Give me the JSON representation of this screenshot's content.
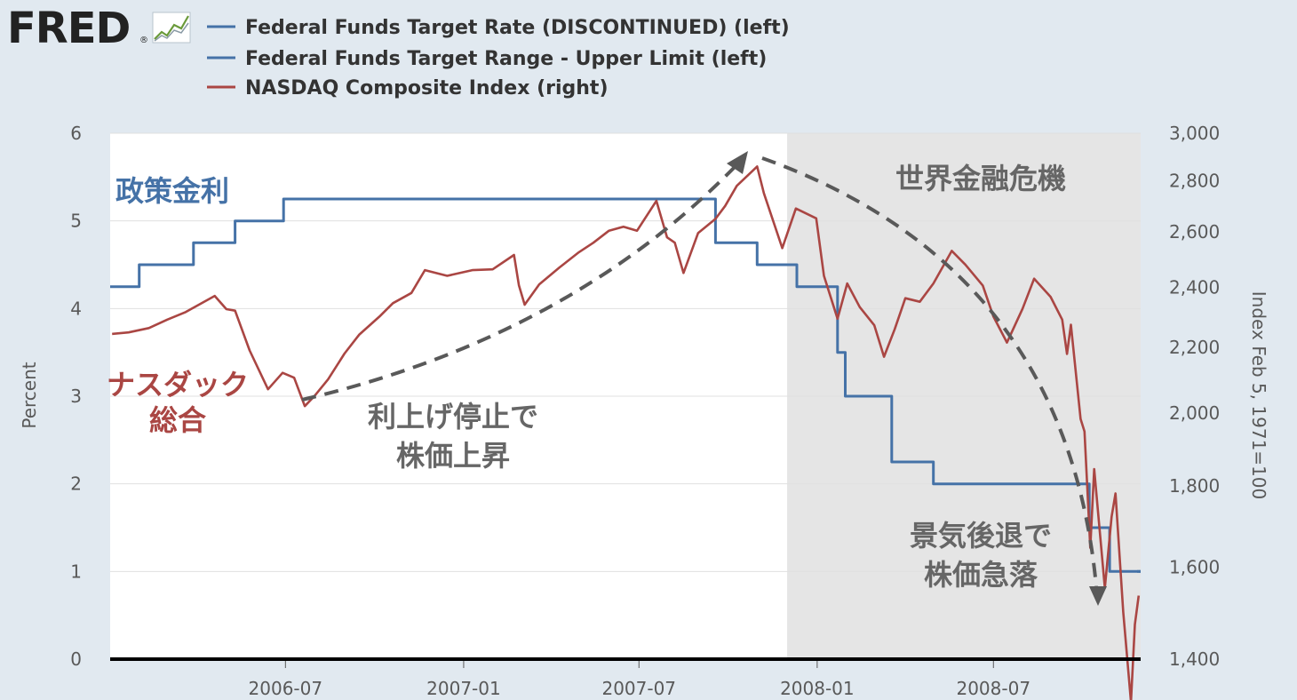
{
  "logo": {
    "text": "FRED",
    "registered": "®"
  },
  "legend": [
    {
      "label": "Federal Funds Target Rate (DISCONTINUED) (left)",
      "color": "#4572a7"
    },
    {
      "label": "Federal Funds Target Range - Upper Limit (left)",
      "color": "#4572a7"
    },
    {
      "label": "NASDAQ Composite Index (right)",
      "color": "#aa4643"
    }
  ],
  "colors": {
    "background": "#e1e9f0",
    "plot_background": "#ffffff",
    "recession_shade": "#e5e5e5",
    "rate_line": "#4572a7",
    "nasdaq_line": "#aa4643",
    "annotation_gray": "#666666",
    "arrow_gray": "#595959"
  },
  "annotations": {
    "policy_rate": "政策金利",
    "nasdaq_line1": "ナスダック",
    "nasdaq_line2": "総合",
    "rise_line1": "利上げ停止で",
    "rise_line2": "株価上昇",
    "crisis": "世界金融危機",
    "crash_line1": "景気後退で",
    "crash_line2": "株価急落"
  },
  "chart_data": {
    "type": "line",
    "x_type": "date",
    "x_range": [
      "2006-01-01",
      "2008-11-30"
    ],
    "x_ticks": [
      "2006-07",
      "2007-01",
      "2007-07",
      "2008-01",
      "2008-07"
    ],
    "left_axis": {
      "label": "Percent",
      "range": [
        0,
        6
      ],
      "ticks": [
        "0",
        "1",
        "2",
        "3",
        "4",
        "5",
        "6"
      ]
    },
    "right_axis": {
      "label": "Index Feb 5, 1971=100",
      "scale": "log",
      "range": [
        1400,
        3000
      ],
      "ticks": [
        "1,400",
        "1,600",
        "1,800",
        "2,000",
        "2,200",
        "2,400",
        "2,600",
        "2,800",
        "3,000"
      ]
    },
    "grid": true,
    "legend_position": "top-left",
    "recession_shading": {
      "start": "2007-12-01",
      "end": "2008-11-30"
    },
    "series": [
      {
        "name": "Federal Funds Target Rate (DISCONTINUED) (left)",
        "axis": "left",
        "step": true,
        "points": [
          [
            "2006-01-01",
            4.25
          ],
          [
            "2006-01-31",
            4.5
          ],
          [
            "2006-03-28",
            4.75
          ],
          [
            "2006-05-10",
            5.0
          ],
          [
            "2006-06-29",
            5.25
          ],
          [
            "2007-09-18",
            4.75
          ],
          [
            "2007-10-31",
            4.5
          ],
          [
            "2007-12-11",
            4.25
          ],
          [
            "2008-01-22",
            3.5
          ],
          [
            "2008-01-30",
            3.0
          ],
          [
            "2008-03-18",
            2.25
          ],
          [
            "2008-04-30",
            2.0
          ],
          [
            "2008-10-08",
            1.5
          ],
          [
            "2008-10-29",
            1.0
          ],
          [
            "2008-11-30",
            1.0
          ]
        ]
      },
      {
        "name": "Federal Funds Target Range - Upper Limit (left)",
        "axis": "left",
        "step": true,
        "points": [
          [
            "2008-11-30",
            1.0
          ]
        ]
      },
      {
        "name": "NASDAQ Composite Index (right)",
        "axis": "right",
        "points": [
          [
            "2006-01-03",
            2243
          ],
          [
            "2006-01-20",
            2248
          ],
          [
            "2006-02-10",
            2262
          ],
          [
            "2006-03-01",
            2290
          ],
          [
            "2006-03-20",
            2315
          ],
          [
            "2006-04-19",
            2370
          ],
          [
            "2006-05-01",
            2325
          ],
          [
            "2006-05-10",
            2320
          ],
          [
            "2006-05-25",
            2190
          ],
          [
            "2006-06-13",
            2070
          ],
          [
            "2006-06-28",
            2120
          ],
          [
            "2006-07-10",
            2105
          ],
          [
            "2006-07-21",
            2020
          ],
          [
            "2006-07-31",
            2050
          ],
          [
            "2006-08-14",
            2100
          ],
          [
            "2006-08-31",
            2180
          ],
          [
            "2006-09-15",
            2240
          ],
          [
            "2006-10-06",
            2300
          ],
          [
            "2006-10-20",
            2345
          ],
          [
            "2006-11-08",
            2380
          ],
          [
            "2006-11-22",
            2460
          ],
          [
            "2006-12-15",
            2440
          ],
          [
            "2007-01-10",
            2460
          ],
          [
            "2007-01-31",
            2463
          ],
          [
            "2007-02-22",
            2515
          ],
          [
            "2007-02-27",
            2407
          ],
          [
            "2007-03-05",
            2340
          ],
          [
            "2007-03-20",
            2410
          ],
          [
            "2007-04-10",
            2470
          ],
          [
            "2007-04-30",
            2525
          ],
          [
            "2007-05-15",
            2560
          ],
          [
            "2007-05-31",
            2605
          ],
          [
            "2007-06-15",
            2620
          ],
          [
            "2007-06-29",
            2605
          ],
          [
            "2007-07-19",
            2720
          ],
          [
            "2007-07-30",
            2580
          ],
          [
            "2007-08-07",
            2560
          ],
          [
            "2007-08-16",
            2450
          ],
          [
            "2007-08-31",
            2596
          ],
          [
            "2007-09-18",
            2650
          ],
          [
            "2007-09-28",
            2700
          ],
          [
            "2007-10-10",
            2780
          ],
          [
            "2007-10-31",
            2859
          ],
          [
            "2007-11-07",
            2750
          ],
          [
            "2007-11-26",
            2540
          ],
          [
            "2007-12-10",
            2690
          ],
          [
            "2007-12-31",
            2652
          ],
          [
            "2008-01-08",
            2440
          ],
          [
            "2008-01-22",
            2293
          ],
          [
            "2008-02-01",
            2413
          ],
          [
            "2008-02-14",
            2332
          ],
          [
            "2008-02-29",
            2271
          ],
          [
            "2008-03-10",
            2170
          ],
          [
            "2008-03-21",
            2258
          ],
          [
            "2008-04-01",
            2362
          ],
          [
            "2008-04-16",
            2350
          ],
          [
            "2008-04-30",
            2413
          ],
          [
            "2008-05-19",
            2530
          ],
          [
            "2008-06-02",
            2480
          ],
          [
            "2008-06-20",
            2406
          ],
          [
            "2008-07-01",
            2300
          ],
          [
            "2008-07-15",
            2215
          ],
          [
            "2008-07-31",
            2326
          ],
          [
            "2008-08-12",
            2430
          ],
          [
            "2008-08-29",
            2367
          ],
          [
            "2008-09-10",
            2290
          ],
          [
            "2008-09-15",
            2179
          ],
          [
            "2008-09-19",
            2273
          ],
          [
            "2008-09-29",
            1983
          ],
          [
            "2008-10-03",
            1947
          ],
          [
            "2008-10-09",
            1645
          ],
          [
            "2008-10-13",
            1844
          ],
          [
            "2008-10-24",
            1552
          ],
          [
            "2008-10-31",
            1721
          ],
          [
            "2008-11-04",
            1780
          ],
          [
            "2008-11-12",
            1499
          ],
          [
            "2008-11-20",
            1316
          ],
          [
            "2008-11-24",
            1472
          ],
          [
            "2008-11-28",
            1535
          ]
        ]
      }
    ]
  }
}
